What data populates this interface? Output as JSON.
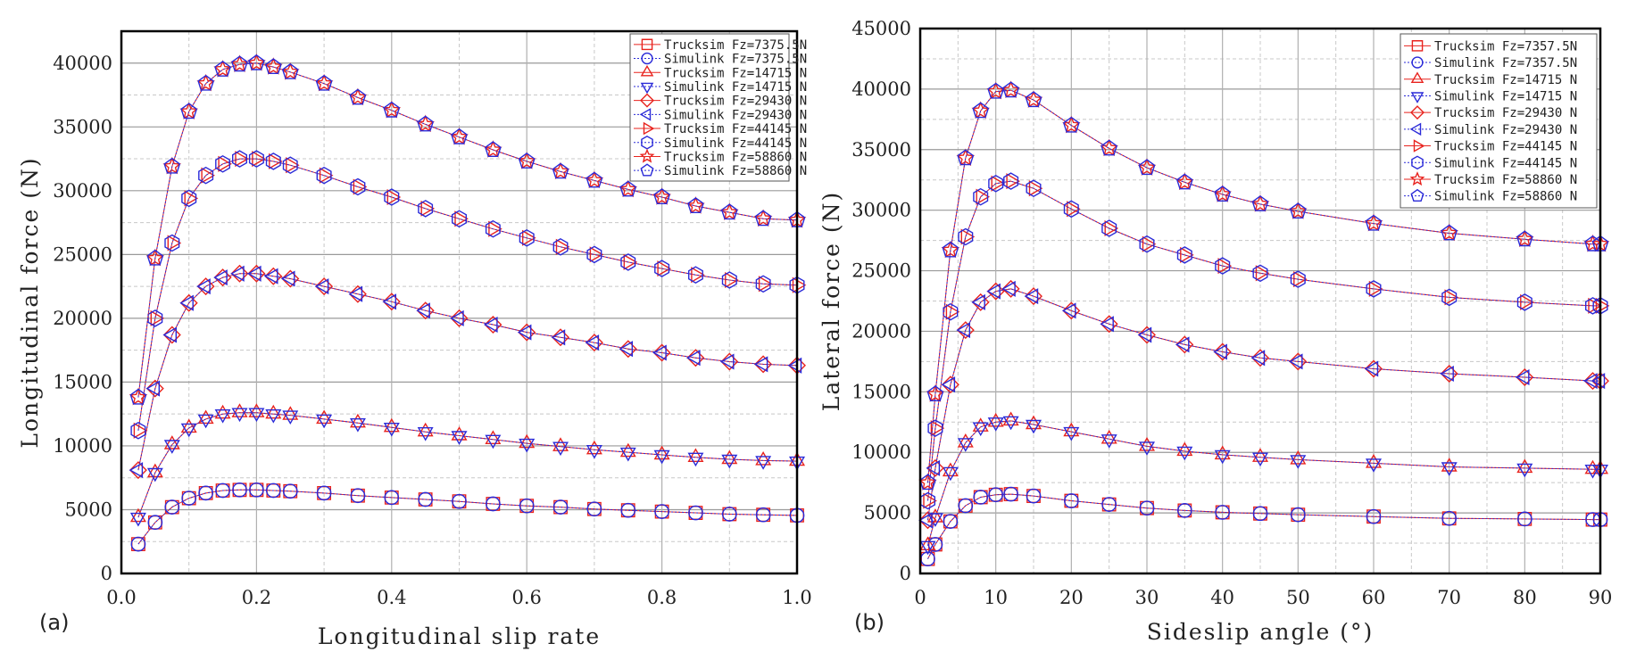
{
  "chart_data": [
    {
      "type": "line",
      "panel_label": "(a)",
      "title": "",
      "xlabel": "Longitudinal slip rate",
      "ylabel": "Longitudinal force (N)",
      "xlim": [
        0,
        1.0
      ],
      "ylim": [
        0,
        42500
      ],
      "xticks": [
        0.0,
        0.2,
        0.4,
        0.6,
        0.8,
        1.0
      ],
      "xtick_labels": [
        "0.0",
        "0.2",
        "0.4",
        "0.6",
        "0.8",
        "1.0"
      ],
      "xminor": [
        0.1,
        0.3,
        0.5,
        0.7,
        0.9
      ],
      "yticks": [
        0,
        5000,
        10000,
        15000,
        20000,
        25000,
        30000,
        35000,
        40000
      ],
      "ytick_labels": [
        "0",
        "5000",
        "10000",
        "15000",
        "20000",
        "25000",
        "30000",
        "35000",
        "40000"
      ],
      "yminor": [
        2500,
        7500,
        12500,
        17500,
        22500,
        27500,
        32500,
        37500
      ],
      "grid": true,
      "legend_position": "top-right",
      "x": [
        0.025,
        0.05,
        0.075,
        0.1,
        0.125,
        0.15,
        0.175,
        0.2,
        0.225,
        0.25,
        0.3,
        0.35,
        0.4,
        0.45,
        0.5,
        0.55,
        0.6,
        0.65,
        0.7,
        0.75,
        0.8,
        0.85,
        0.9,
        0.95,
        1.0
      ],
      "series": [
        {
          "name": "Trucksim Fz=7375.5N",
          "source": "Trucksim",
          "marker": "square",
          "color": "#e8231e",
          "values": [
            2300,
            4000,
            5200,
            5900,
            6300,
            6500,
            6550,
            6550,
            6500,
            6450,
            6300,
            6100,
            5950,
            5800,
            5650,
            5450,
            5300,
            5200,
            5050,
            4950,
            4850,
            4750,
            4650,
            4600,
            4550
          ]
        },
        {
          "name": "Simulink Fz=7375.5N",
          "source": "Simulink",
          "marker": "circle",
          "color": "#2a2ad8",
          "values": [
            2300,
            4000,
            5200,
            5900,
            6300,
            6500,
            6550,
            6550,
            6500,
            6450,
            6300,
            6100,
            5950,
            5800,
            5650,
            5450,
            5300,
            5200,
            5050,
            4950,
            4850,
            4750,
            4650,
            4600,
            4550
          ]
        },
        {
          "name": "Trucksim Fz=14715 N",
          "source": "Trucksim",
          "marker": "triangle-up",
          "color": "#e8231e",
          "values": [
            4400,
            7900,
            10100,
            11400,
            12100,
            12500,
            12600,
            12600,
            12500,
            12400,
            12100,
            11800,
            11450,
            11100,
            10800,
            10500,
            10200,
            9950,
            9700,
            9500,
            9300,
            9100,
            8950,
            8850,
            8800
          ]
        },
        {
          "name": "Simulink Fz=14715 N",
          "source": "Simulink",
          "marker": "triangle-down",
          "color": "#2a2ad8",
          "values": [
            4400,
            7900,
            10100,
            11400,
            12100,
            12500,
            12600,
            12600,
            12500,
            12400,
            12100,
            11800,
            11450,
            11100,
            10800,
            10500,
            10200,
            9950,
            9700,
            9500,
            9300,
            9100,
            8950,
            8850,
            8800
          ]
        },
        {
          "name": "Trucksim Fz=29430 N",
          "source": "Trucksim",
          "marker": "diamond",
          "color": "#e8231e",
          "values": [
            8100,
            14500,
            18700,
            21200,
            22500,
            23200,
            23500,
            23500,
            23300,
            23100,
            22500,
            21900,
            21300,
            20600,
            20000,
            19500,
            18900,
            18500,
            18100,
            17600,
            17300,
            16900,
            16600,
            16400,
            16300
          ]
        },
        {
          "name": "Simulink Fz=29430 N",
          "source": "Simulink",
          "marker": "triangle-left",
          "color": "#2a2ad8",
          "values": [
            8100,
            14500,
            18700,
            21200,
            22500,
            23200,
            23500,
            23500,
            23300,
            23100,
            22500,
            21900,
            21300,
            20600,
            20000,
            19500,
            18900,
            18500,
            18100,
            17600,
            17300,
            16900,
            16600,
            16400,
            16300
          ]
        },
        {
          "name": "Trucksim Fz=44145 N",
          "source": "Trucksim",
          "marker": "triangle-right",
          "color": "#e8231e",
          "values": [
            11200,
            20000,
            25900,
            29400,
            31200,
            32100,
            32500,
            32500,
            32300,
            32000,
            31200,
            30300,
            29500,
            28600,
            27800,
            27000,
            26300,
            25600,
            25000,
            24400,
            23900,
            23400,
            23000,
            22700,
            22600
          ]
        },
        {
          "name": "Simulink Fz=44145 N",
          "source": "Simulink",
          "marker": "hexagon",
          "color": "#2a2ad8",
          "values": [
            11200,
            20000,
            25900,
            29400,
            31200,
            32100,
            32500,
            32500,
            32300,
            32000,
            31200,
            30300,
            29500,
            28600,
            27800,
            27000,
            26300,
            25600,
            25000,
            24400,
            23900,
            23400,
            23000,
            22700,
            22600
          ]
        },
        {
          "name": "Trucksim Fz=58860 N",
          "source": "Trucksim",
          "marker": "star",
          "color": "#e8231e",
          "values": [
            13800,
            24700,
            31900,
            36200,
            38400,
            39500,
            39900,
            40000,
            39700,
            39300,
            38400,
            37300,
            36300,
            35200,
            34200,
            33200,
            32300,
            31500,
            30800,
            30100,
            29500,
            28800,
            28300,
            27800,
            27700
          ]
        },
        {
          "name": "Simulink Fz=58860 N",
          "source": "Simulink",
          "marker": "pentagon",
          "color": "#2a2ad8",
          "values": [
            13800,
            24700,
            31900,
            36200,
            38400,
            39500,
            39900,
            40000,
            39700,
            39300,
            38400,
            37300,
            36300,
            35200,
            34200,
            33200,
            32300,
            31500,
            30800,
            30100,
            29500,
            28800,
            28300,
            27800,
            27700
          ]
        }
      ]
    },
    {
      "type": "line",
      "panel_label": "(b)",
      "title": "",
      "xlabel": "Sideslip angle (°)",
      "ylabel": "Lateral force (N)",
      "xlim": [
        0,
        90
      ],
      "ylim": [
        0,
        45000
      ],
      "xticks": [
        0,
        10,
        20,
        30,
        40,
        50,
        60,
        70,
        80,
        90
      ],
      "xtick_labels": [
        "0",
        "10",
        "20",
        "30",
        "40",
        "50",
        "60",
        "70",
        "80",
        "90"
      ],
      "xminor": [
        5,
        15,
        25,
        35,
        45,
        55,
        65,
        75,
        85
      ],
      "yticks": [
        0,
        5000,
        10000,
        15000,
        20000,
        25000,
        30000,
        35000,
        40000,
        45000
      ],
      "ytick_labels": [
        "0",
        "5000",
        "10000",
        "15000",
        "20000",
        "25000",
        "30000",
        "35000",
        "40000",
        "45000"
      ],
      "yminor": [
        2500,
        7500,
        12500,
        17500,
        22500,
        27500,
        32500,
        37500,
        42500
      ],
      "grid": true,
      "legend_position": "top-right",
      "x": [
        1,
        2,
        4,
        6,
        8,
        10,
        12,
        15,
        20,
        25,
        30,
        35,
        40,
        45,
        50,
        60,
        70,
        80,
        89,
        90
      ],
      "series": [
        {
          "name": "Trucksim Fz=7357.5N",
          "source": "Trucksim",
          "marker": "square",
          "color": "#e8231e",
          "values": [
            1200,
            2400,
            4300,
            5600,
            6300,
            6500,
            6550,
            6400,
            6000,
            5700,
            5400,
            5200,
            5050,
            4950,
            4850,
            4700,
            4550,
            4500,
            4450,
            4450
          ]
        },
        {
          "name": "Simulink Fz=7357.5N",
          "source": "Simulink",
          "marker": "circle",
          "color": "#2a2ad8",
          "values": [
            1200,
            2400,
            4300,
            5600,
            6300,
            6500,
            6550,
            6400,
            6000,
            5700,
            5400,
            5200,
            5050,
            4950,
            4850,
            4700,
            4550,
            4500,
            4450,
            4450
          ]
        },
        {
          "name": "Trucksim Fz=14715 N",
          "source": "Trucksim",
          "marker": "triangle-up",
          "color": "#e8231e",
          "values": [
            2300,
            4600,
            8400,
            10800,
            12100,
            12500,
            12600,
            12300,
            11700,
            11100,
            10500,
            10100,
            9800,
            9600,
            9400,
            9100,
            8800,
            8700,
            8600,
            8600
          ]
        },
        {
          "name": "Simulink Fz=14715 N",
          "source": "Simulink",
          "marker": "triangle-down",
          "color": "#2a2ad8",
          "values": [
            2300,
            4600,
            8400,
            10800,
            12100,
            12500,
            12600,
            12300,
            11700,
            11100,
            10500,
            10100,
            9800,
            9600,
            9400,
            9100,
            8800,
            8700,
            8600,
            8600
          ]
        },
        {
          "name": "Trucksim Fz=29430 N",
          "source": "Trucksim",
          "marker": "diamond",
          "color": "#e8231e",
          "values": [
            4400,
            8700,
            15600,
            20100,
            22400,
            23300,
            23500,
            22900,
            21700,
            20600,
            19700,
            18900,
            18300,
            17800,
            17500,
            16900,
            16500,
            16200,
            15900,
            15900
          ]
        },
        {
          "name": "Simulink Fz=29430 N",
          "source": "Simulink",
          "marker": "triangle-left",
          "color": "#2a2ad8",
          "values": [
            4400,
            8700,
            15600,
            20100,
            22400,
            23300,
            23500,
            22900,
            21700,
            20600,
            19700,
            18900,
            18300,
            17800,
            17500,
            16900,
            16500,
            16200,
            15900,
            15900
          ]
        },
        {
          "name": "Trucksim Fz=44145 N",
          "source": "Trucksim",
          "marker": "triangle-right",
          "color": "#e8231e",
          "values": [
            6000,
            12000,
            21600,
            27800,
            31100,
            32200,
            32400,
            31800,
            30100,
            28500,
            27200,
            26300,
            25400,
            24800,
            24300,
            23500,
            22800,
            22400,
            22100,
            22100
          ]
        },
        {
          "name": "Simulink Fz=44145 N",
          "source": "Simulink",
          "marker": "hexagon",
          "color": "#2a2ad8",
          "values": [
            6000,
            12000,
            21600,
            27800,
            31100,
            32200,
            32400,
            31800,
            30100,
            28500,
            27200,
            26300,
            25400,
            24800,
            24300,
            23500,
            22800,
            22400,
            22100,
            22100
          ]
        },
        {
          "name": "Trucksim Fz=58860 N",
          "source": "Trucksim",
          "marker": "star",
          "color": "#e8231e",
          "values": [
            7500,
            14800,
            26700,
            34300,
            38200,
            39800,
            39900,
            39100,
            37000,
            35100,
            33500,
            32300,
            31300,
            30500,
            29900,
            28900,
            28100,
            27600,
            27200,
            27200
          ]
        },
        {
          "name": "Simulink Fz=58860 N",
          "source": "Simulink",
          "marker": "pentagon",
          "color": "#2a2ad8",
          "values": [
            7500,
            14800,
            26700,
            34300,
            38200,
            39800,
            39900,
            39100,
            37000,
            35100,
            33500,
            32300,
            31300,
            30500,
            29900,
            28900,
            28100,
            27600,
            27200,
            27200
          ]
        }
      ]
    }
  ]
}
